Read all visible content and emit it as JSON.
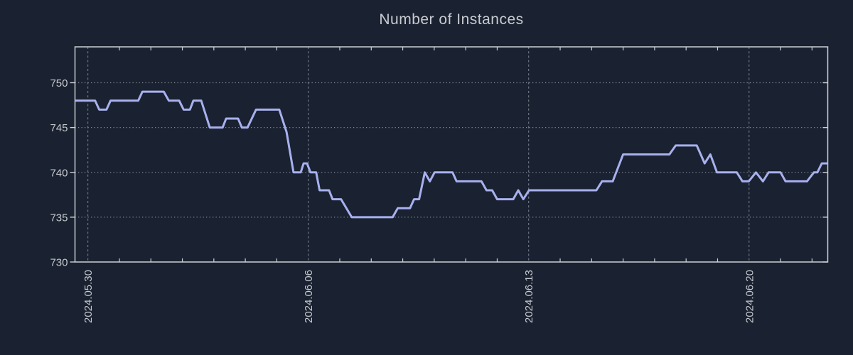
{
  "window": {
    "background_color": "#1a2130"
  },
  "colors": {
    "text": "#c7cbd1",
    "spine": "#ccd0d6",
    "grid": "#9098a3",
    "line": "#a8b1ee",
    "background": "#1a2130"
  },
  "chart_data": {
    "type": "line",
    "title": "Number of Instances",
    "legend_position": "none",
    "grid": {
      "vertical_style": "dashed",
      "horizontal_style": "dotted"
    },
    "x_axis": {
      "tick_labels": [
        "2024.05.30",
        "2024.06.06",
        "2024.06.13",
        "2024.06.20"
      ],
      "tick_days": [
        0,
        7,
        14,
        21
      ],
      "minor_tick_every_days": 1,
      "range_days": [
        -0.41,
        23.5
      ]
    },
    "y_axis": {
      "tick_values": [
        730,
        735,
        740,
        745,
        750
      ],
      "range": [
        730,
        754
      ]
    },
    "series": [
      {
        "name": "instances",
        "color": "#a8b1ee",
        "points_day_value": [
          [
            -0.41,
            748
          ],
          [
            0.23,
            748
          ],
          [
            0.36,
            747
          ],
          [
            0.59,
            747
          ],
          [
            0.72,
            748
          ],
          [
            1.6,
            748
          ],
          [
            1.73,
            749
          ],
          [
            2.41,
            749
          ],
          [
            2.57,
            748
          ],
          [
            2.9,
            748
          ],
          [
            3.04,
            747
          ],
          [
            3.24,
            747
          ],
          [
            3.35,
            748
          ],
          [
            3.6,
            748
          ],
          [
            3.87,
            745
          ],
          [
            4.28,
            745
          ],
          [
            4.39,
            746
          ],
          [
            4.77,
            746
          ],
          [
            4.89,
            745
          ],
          [
            5.07,
            745
          ],
          [
            5.34,
            747
          ],
          [
            6.08,
            747
          ],
          [
            6.31,
            744.5
          ],
          [
            6.53,
            740
          ],
          [
            6.76,
            740
          ],
          [
            6.85,
            741
          ],
          [
            6.96,
            741
          ],
          [
            7.07,
            740
          ],
          [
            7.25,
            740
          ],
          [
            7.36,
            738
          ],
          [
            7.66,
            738
          ],
          [
            7.77,
            737
          ],
          [
            8.04,
            737
          ],
          [
            8.38,
            735
          ],
          [
            9.68,
            735
          ],
          [
            9.84,
            736
          ],
          [
            10.23,
            736
          ],
          [
            10.36,
            737
          ],
          [
            10.52,
            737
          ],
          [
            10.7,
            740
          ],
          [
            10.86,
            739
          ],
          [
            11.01,
            740
          ],
          [
            11.58,
            740
          ],
          [
            11.71,
            739
          ],
          [
            12.5,
            739
          ],
          [
            12.66,
            738
          ],
          [
            12.84,
            738
          ],
          [
            13.0,
            737
          ],
          [
            13.51,
            737
          ],
          [
            13.67,
            738
          ],
          [
            13.83,
            737
          ],
          [
            14.01,
            738
          ],
          [
            16.15,
            738
          ],
          [
            16.33,
            739
          ],
          [
            16.67,
            739
          ],
          [
            17.0,
            742
          ],
          [
            18.47,
            742
          ],
          [
            18.67,
            743
          ],
          [
            19.34,
            743
          ],
          [
            19.59,
            741
          ],
          [
            19.77,
            742
          ],
          [
            19.98,
            740
          ],
          [
            20.61,
            740
          ],
          [
            20.79,
            739
          ],
          [
            20.99,
            739
          ],
          [
            21.22,
            740
          ],
          [
            21.44,
            739
          ],
          [
            21.62,
            740
          ],
          [
            22.0,
            740
          ],
          [
            22.16,
            739
          ],
          [
            22.84,
            739
          ],
          [
            23.06,
            740
          ],
          [
            23.17,
            740
          ],
          [
            23.31,
            741
          ],
          [
            23.5,
            741
          ]
        ]
      }
    ]
  }
}
